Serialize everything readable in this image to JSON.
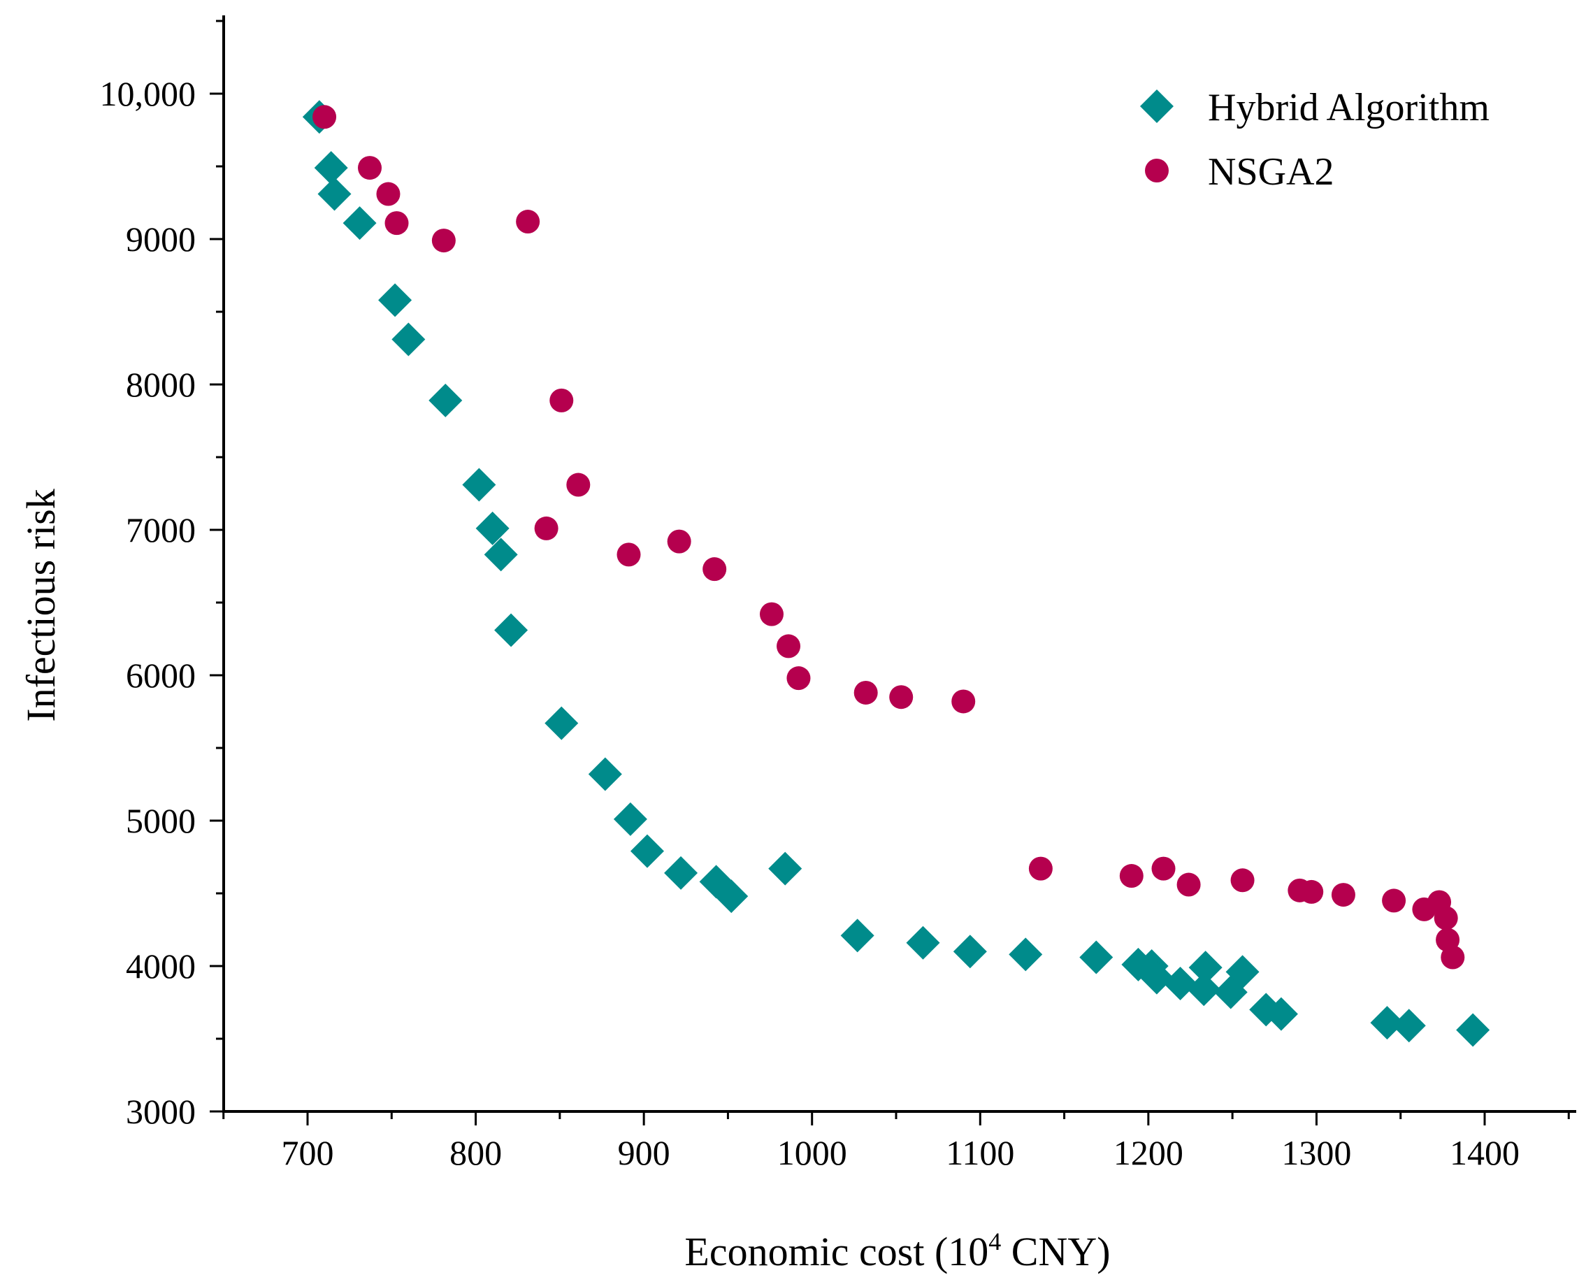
{
  "chart_data": {
    "type": "scatter",
    "title": "",
    "xlabel_text": "Economic cost (10",
    "xlabel_sup": "4",
    "xlabel_tail": " CNY)",
    "ylabel": "Infectious risk",
    "xlim": [
      650,
      1450
    ],
    "ylim": [
      3000,
      10500
    ],
    "xticks": [
      700,
      800,
      900,
      1000,
      1100,
      1200,
      1300,
      1400
    ],
    "xtick_labels": [
      "700",
      "800",
      "900",
      "1000",
      "1100",
      "1200",
      "1300",
      "1400"
    ],
    "yticks": [
      3000,
      4000,
      5000,
      6000,
      7000,
      8000,
      9000,
      10000
    ],
    "ytick_labels": [
      "3000",
      "4000",
      "5000",
      "6000",
      "7000",
      "8000",
      "9000",
      "10,000"
    ],
    "legend_position": "top-right",
    "series": [
      {
        "name": "Hybrid Algorithm",
        "marker": "diamond",
        "color": "#008b8b",
        "points": [
          [
            707,
            9840
          ],
          [
            714,
            9490
          ],
          [
            716,
            9310
          ],
          [
            731,
            9110
          ],
          [
            752,
            8580
          ],
          [
            760,
            8310
          ],
          [
            782,
            7890
          ],
          [
            802,
            7310
          ],
          [
            810,
            7010
          ],
          [
            815,
            6830
          ],
          [
            821,
            6310
          ],
          [
            851,
            5670
          ],
          [
            877,
            5320
          ],
          [
            892,
            5010
          ],
          [
            902,
            4790
          ],
          [
            922,
            4640
          ],
          [
            943,
            4580
          ],
          [
            952,
            4480
          ],
          [
            984,
            4670
          ],
          [
            1027,
            4210
          ],
          [
            1066,
            4160
          ],
          [
            1094,
            4100
          ],
          [
            1127,
            4080
          ],
          [
            1169,
            4060
          ],
          [
            1194,
            4010
          ],
          [
            1202,
            4000
          ],
          [
            1205,
            3920
          ],
          [
            1219,
            3880
          ],
          [
            1234,
            3990
          ],
          [
            1233,
            3840
          ],
          [
            1249,
            3820
          ],
          [
            1256,
            3960
          ],
          [
            1270,
            3700
          ],
          [
            1279,
            3670
          ],
          [
            1342,
            3610
          ],
          [
            1355,
            3590
          ],
          [
            1393,
            3560
          ]
        ]
      },
      {
        "name": "NSGA2",
        "marker": "circle",
        "color": "#b5004e",
        "points": [
          [
            710,
            9840
          ],
          [
            737,
            9490
          ],
          [
            748,
            9310
          ],
          [
            753,
            9110
          ],
          [
            781,
            8990
          ],
          [
            831,
            9120
          ],
          [
            851,
            7890
          ],
          [
            861,
            7310
          ],
          [
            842,
            7010
          ],
          [
            891,
            6830
          ],
          [
            921,
            6920
          ],
          [
            942,
            6730
          ],
          [
            976,
            6420
          ],
          [
            986,
            6200
          ],
          [
            992,
            5980
          ],
          [
            1032,
            5880
          ],
          [
            1053,
            5850
          ],
          [
            1090,
            5820
          ],
          [
            1136,
            4670
          ],
          [
            1190,
            4620
          ],
          [
            1209,
            4670
          ],
          [
            1224,
            4560
          ],
          [
            1256,
            4590
          ],
          [
            1290,
            4520
          ],
          [
            1297,
            4510
          ],
          [
            1316,
            4490
          ],
          [
            1346,
            4450
          ],
          [
            1364,
            4390
          ],
          [
            1373,
            4440
          ],
          [
            1377,
            4330
          ],
          [
            1378,
            4180
          ],
          [
            1381,
            4060
          ]
        ]
      }
    ]
  }
}
